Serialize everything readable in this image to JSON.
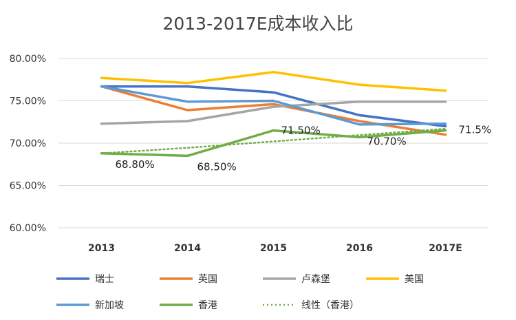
{
  "chart_data": {
    "type": "line",
    "title": "2013-2017E成本收入比",
    "xlabel": "",
    "ylabel": "",
    "categories": [
      "2013",
      "2014",
      "2015",
      "2016",
      "2017E"
    ],
    "ylim": [
      60,
      80
    ],
    "yticks": [
      "60.00%",
      "65.00%",
      "70.00%",
      "75.00%",
      "80.00%"
    ],
    "ytick_values": [
      60,
      65,
      70,
      75,
      80
    ],
    "grid": true,
    "legend_position": "bottom",
    "series": [
      {
        "name": "瑞士",
        "color": "#4472C4",
        "dashed": false,
        "values": [
          76.7,
          76.7,
          76.0,
          73.3,
          72.0
        ]
      },
      {
        "name": "英国",
        "color": "#ED7D31",
        "dashed": false,
        "values": [
          76.7,
          73.9,
          74.6,
          72.6,
          71.0
        ]
      },
      {
        "name": "卢森堡",
        "color": "#A5A5A5",
        "dashed": false,
        "values": [
          72.3,
          72.6,
          74.3,
          74.9,
          74.9
        ]
      },
      {
        "name": "美国",
        "color": "#FFC000",
        "dashed": false,
        "values": [
          77.7,
          77.1,
          78.4,
          76.9,
          76.2
        ]
      },
      {
        "name": "新加坡",
        "color": "#5B9BD5",
        "dashed": false,
        "values": [
          76.7,
          74.9,
          75.0,
          72.2,
          72.3
        ]
      },
      {
        "name": "香港",
        "color": "#70AD47",
        "dashed": false,
        "values": [
          68.8,
          68.5,
          71.5,
          70.7,
          71.5
        ]
      },
      {
        "name": "线性（香港）",
        "color": "#70AD47",
        "dashed": true,
        "values": [
          68.8,
          69.45,
          70.2,
          70.95,
          71.7
        ]
      }
    ],
    "annotations": [
      {
        "series": "香港",
        "index": 0,
        "text": "68.80%"
      },
      {
        "series": "香港",
        "index": 1,
        "text": "68.50%"
      },
      {
        "series": "香港",
        "index": 2,
        "text": "71.50%"
      },
      {
        "series": "香港",
        "index": 3,
        "text": "70.70%"
      },
      {
        "series": "香港",
        "index": 4,
        "text": "71.5%"
      }
    ]
  }
}
